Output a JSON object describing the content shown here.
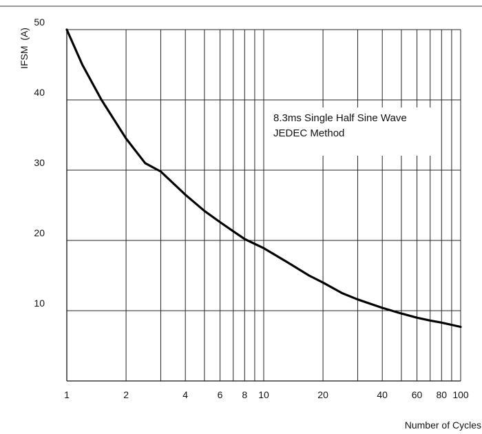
{
  "chart_data": {
    "type": "line",
    "title": "",
    "xlabel": "Number of Cycles",
    "ylabel": "IFSM  (A)",
    "x_scale": "log",
    "xlim": [
      1,
      100
    ],
    "ylim": [
      0,
      50
    ],
    "x_ticks": [
      1,
      2,
      4,
      6,
      8,
      10,
      20,
      40,
      60,
      80,
      100
    ],
    "y_ticks": [
      10,
      20,
      30,
      40,
      50
    ],
    "x_minor_gridlines": [
      3,
      5,
      7,
      9,
      30,
      50,
      70,
      90
    ],
    "grid": true,
    "annotation": [
      "8.3ms Single Half Sine Wave",
      "JEDEC Method"
    ],
    "series": [
      {
        "color": "#000000",
        "x": [
          1,
          1.2,
          1.5,
          2,
          2.5,
          3,
          4,
          5,
          6,
          7,
          8,
          10,
          13,
          17,
          20,
          25,
          30,
          40,
          50,
          60,
          70,
          80,
          100
        ],
        "y": [
          50,
          45,
          40,
          34.5,
          31,
          29.8,
          26.5,
          24.2,
          22.6,
          21.3,
          20.2,
          18.9,
          17,
          15,
          14,
          12.5,
          11.6,
          10.4,
          9.6,
          9,
          8.6,
          8.3,
          7.7
        ]
      }
    ]
  }
}
